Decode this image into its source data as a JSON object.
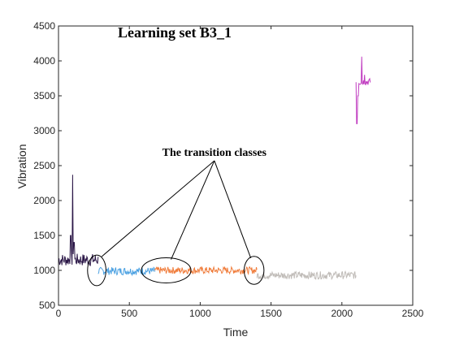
{
  "chart_data": {
    "type": "line",
    "title": "Learning set B3_1",
    "xlabel": "Time",
    "ylabel": "Vibration",
    "xlim": [
      0,
      2500
    ],
    "ylim": [
      500,
      4500
    ],
    "xticks": [
      0,
      500,
      1000,
      1500,
      2000,
      2500
    ],
    "yticks": [
      500,
      1000,
      1500,
      2000,
      2500,
      3000,
      3500,
      4000,
      4500
    ],
    "grid": false,
    "annotation": {
      "text": "The transition classes",
      "anchor": [
        1100,
        2570
      ],
      "targets": [
        {
          "center": [
            270,
            1000
          ],
          "rx": 65,
          "ry": 220
        },
        {
          "center": [
            760,
            1000
          ],
          "rx": 175,
          "ry": 180
        },
        {
          "center": [
            1380,
            1000
          ],
          "rx": 70,
          "ry": 200
        }
      ]
    },
    "series": [
      {
        "color": "#2b1747",
        "x_start": 0,
        "x_end": 280,
        "base": 1150,
        "noise": 90,
        "spikes": [
          [
            100,
            2370
          ],
          [
            85,
            1500
          ],
          [
            110,
            1400
          ]
        ]
      },
      {
        "color": "#4da2e2",
        "x_start": 280,
        "x_end": 680,
        "base": 990,
        "noise": 55,
        "spikes": []
      },
      {
        "color": "#f07d3c",
        "x_start": 680,
        "x_end": 1400,
        "base": 1000,
        "noise": 50,
        "spikes": []
      },
      {
        "color": "#c0bcb8",
        "x_start": 1400,
        "x_end": 2100,
        "base": 930,
        "noise": 55,
        "spikes": []
      },
      {
        "color": "#c03cc0",
        "x_start": 2100,
        "x_end": 2200,
        "base": 3700,
        "noise": 50,
        "spikes": [
          [
            2105,
            3100
          ],
          [
            2115,
            3500
          ],
          [
            2140,
            4060
          ],
          [
            2160,
            3800
          ]
        ]
      }
    ]
  }
}
